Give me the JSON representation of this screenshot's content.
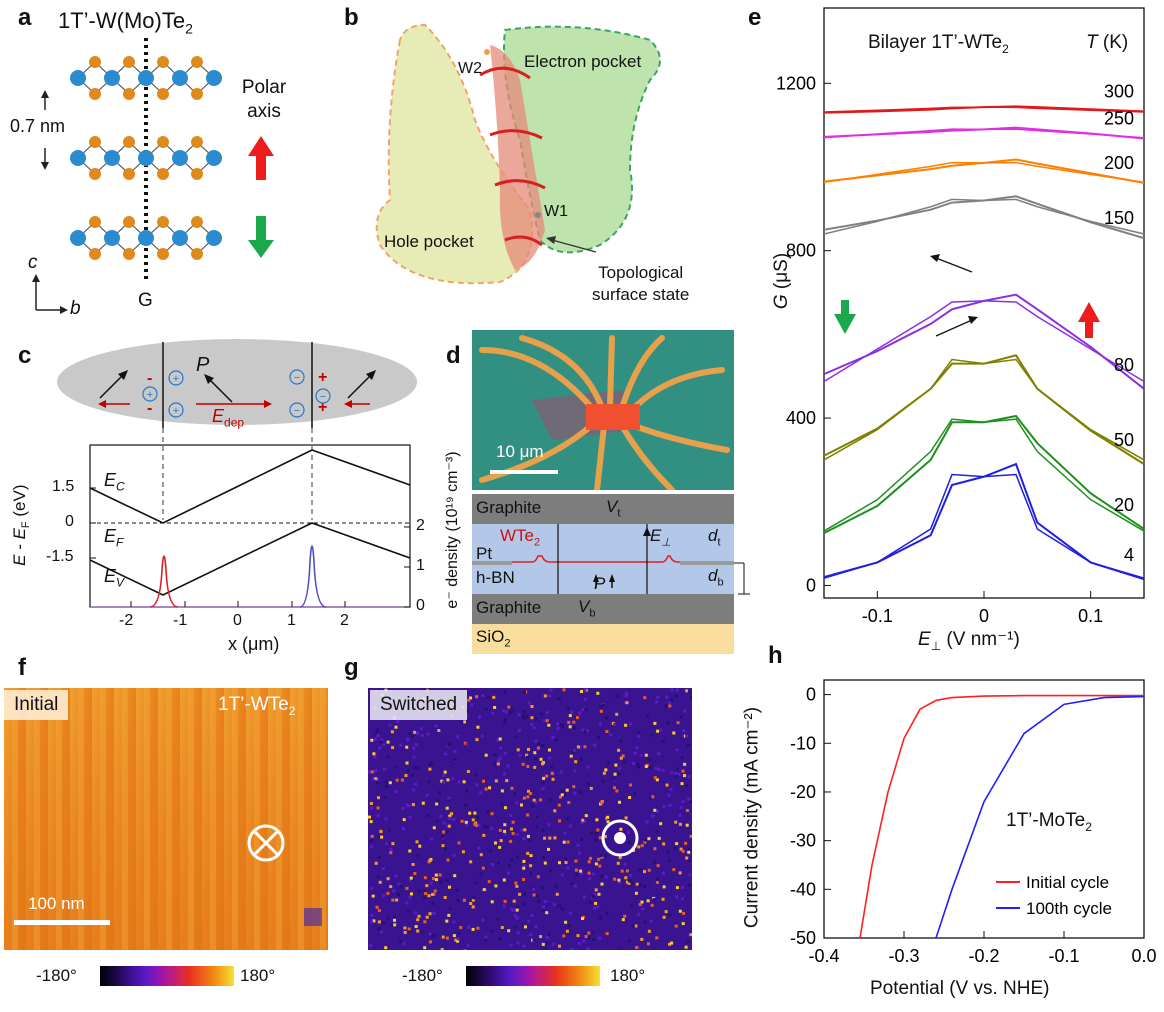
{
  "panels": {
    "a": {
      "letter": "a",
      "title_main": "1T’-W(Mo)Te",
      "title_sub": "2",
      "spacing": "0.7 nm",
      "polar_line1": "Polar",
      "polar_line2": "axis",
      "axis_c": "c",
      "axis_b": "b",
      "g_label": "G"
    },
    "b": {
      "letter": "b",
      "w2": "W2",
      "w1": "W1",
      "electron_pocket": "Electron pocket",
      "hole_pocket": "Hole pocket",
      "tss_line1": "Topological",
      "tss_line2": "surface state"
    },
    "c": {
      "letter": "c",
      "P": "P",
      "E_dep": "E",
      "E_dep_sub": "dep",
      "EC": "E",
      "EC_sub": "C",
      "EF": "E",
      "EF_sub": "F",
      "EV": "E",
      "EV_sub": "V",
      "ylabel_left": "E - E",
      "ylabel_left_sub": "F",
      "ylabel_left_unit": " (eV)",
      "ylabel_right": "e⁻ density (10¹⁹ cm⁻³)",
      "xlabel": "x (μm)",
      "left_ticks": [
        "1.5",
        "0",
        "-1.5"
      ],
      "right_ticks": [
        "2",
        "1",
        "0"
      ],
      "x_ticks": [
        "-2",
        "-1",
        "0",
        "1",
        "2"
      ]
    },
    "d": {
      "letter": "d",
      "scale": "10 μm",
      "graphite_top": "Graphite",
      "Vt": "V",
      "Vt_sub": "t",
      "wte2": "WTe",
      "wte2_sub": "2",
      "Eperp": "E",
      "Eperp_sub": "⊥",
      "dt": "d",
      "dt_sub": "t",
      "pt": "Pt",
      "P": "P",
      "hbn": "h-BN",
      "db": "d",
      "db_sub": "b",
      "graphite_bottom": "Graphite",
      "Vb": "V",
      "Vb_sub": "b",
      "sio2": "SiO",
      "sio2_sub": "2"
    },
    "e": {
      "letter": "e",
      "title": "Bilayer 1T’-WTe",
      "title_sub": "2",
      "T_label": "T",
      "T_unit": " (K)",
      "ylabel": "G (μS)",
      "xlabel": "E",
      "xlabel_sub": "⊥",
      "xlabel_unit": " (V nm⁻¹)",
      "y_ticks": [
        "1200",
        "800",
        "400",
        "0"
      ],
      "x_ticks": [
        "-0.1",
        "0",
        "0.1"
      ],
      "temps": [
        "300",
        "250",
        "200",
        "150",
        "80",
        "50",
        "20",
        "4"
      ],
      "colors": [
        "#e0191b",
        "#e02fe0",
        "#ff7f00",
        "#808080",
        "#8c2fe0",
        "#808000",
        "#1f8f1f",
        "#1f1fe0"
      ]
    },
    "f": {
      "letter": "f",
      "label": "Initial",
      "material": "1T’-WTe",
      "material_sub": "2",
      "scale": "100 nm",
      "cmin": "-180°",
      "cmax": "180°"
    },
    "g": {
      "letter": "g",
      "label": "Switched",
      "cmin": "-180°",
      "cmax": "180°"
    },
    "h": {
      "letter": "h",
      "material": "1T’-MoTe",
      "material_sub": "2",
      "legend": [
        "Initial cycle",
        "100th cycle"
      ],
      "legend_colors": [
        "#ff1f1f",
        "#1f1fff"
      ],
      "ylabel": "Current density (mA cm⁻²)",
      "xlabel": "Potential (V vs. NHE)",
      "y_ticks": [
        "0",
        "-10",
        "-20",
        "-30",
        "-40",
        "-50"
      ],
      "x_ticks": [
        "-0.4",
        "-0.3",
        "-0.2",
        "-0.1",
        "0.0"
      ]
    }
  },
  "chart_data": [
    {
      "type": "line",
      "panel": "e",
      "title": "Bilayer 1T’-WTe2",
      "xlabel": "E⊥ (V nm⁻¹)",
      "ylabel": "G (μS)",
      "xlim": [
        -0.15,
        0.15
      ],
      "ylim": [
        -30,
        1380
      ],
      "x": [
        -0.15,
        -0.1,
        -0.05,
        -0.03,
        0.0,
        0.03,
        0.05,
        0.1,
        0.15
      ],
      "series": [
        {
          "name": "300",
          "values": [
            1130,
            1133,
            1137,
            1140,
            1143,
            1145,
            1143,
            1138,
            1133
          ]
        },
        {
          "name": "250",
          "values": [
            1072,
            1078,
            1084,
            1087,
            1090,
            1094,
            1090,
            1080,
            1068
          ]
        },
        {
          "name": "200",
          "values": [
            965,
            980,
            995,
            1003,
            1010,
            1018,
            1008,
            985,
            962
          ]
        },
        {
          "name": "150",
          "values": [
            850,
            872,
            898,
            915,
            920,
            930,
            912,
            868,
            830
          ]
        },
        {
          "name": "80",
          "values": [
            505,
            560,
            625,
            660,
            680,
            695,
            660,
            570,
            470
          ]
        },
        {
          "name": "50",
          "values": [
            310,
            375,
            470,
            530,
            530,
            550,
            470,
            370,
            290
          ]
        },
        {
          "name": "20",
          "values": [
            125,
            190,
            300,
            390,
            390,
            405,
            340,
            220,
            135
          ]
        },
        {
          "name": "4",
          "values": [
            20,
            55,
            120,
            240,
            260,
            290,
            150,
            55,
            15
          ]
        }
      ]
    },
    {
      "type": "line",
      "panel": "h",
      "xlabel": "Potential (V vs. NHE)",
      "ylabel": "Current density (mA cm⁻²)",
      "xlim": [
        -0.4,
        0.0
      ],
      "ylim": [
        -50,
        3
      ],
      "x": [
        -0.355,
        -0.34,
        -0.32,
        -0.3,
        -0.28,
        -0.26,
        -0.24,
        -0.2,
        -0.15,
        -0.1,
        -0.05,
        0.0
      ],
      "series": [
        {
          "name": "Initial cycle",
          "values": [
            -50,
            -35,
            -20,
            -9,
            -3,
            -1.2,
            -0.6,
            -0.3,
            -0.2,
            -0.2,
            -0.2,
            -0.2
          ]
        },
        {
          "name": "100th cycle",
          "values": [
            null,
            null,
            null,
            null,
            null,
            -50,
            -40,
            -22,
            -8,
            -2,
            -0.6,
            -0.4
          ]
        }
      ]
    }
  ]
}
